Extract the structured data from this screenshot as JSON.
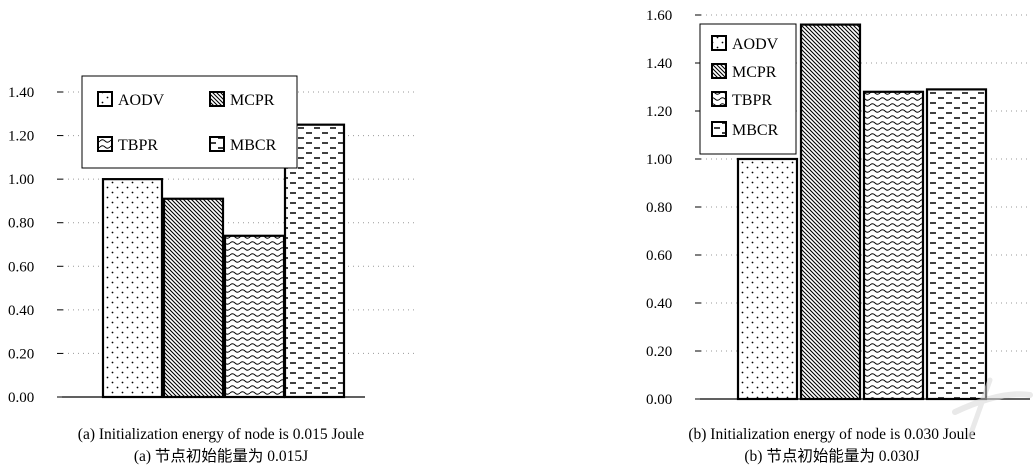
{
  "chart_data": [
    {
      "type": "bar",
      "categories": [
        "AODV",
        "MCPR",
        "TBPR",
        "MBCR"
      ],
      "values": [
        1.0,
        0.91,
        0.74,
        1.25
      ],
      "ylim": [
        0,
        1.4
      ],
      "yticks": [
        "0.00",
        "0.20",
        "0.40",
        "0.60",
        "0.80",
        "1.00",
        "1.20",
        "1.40"
      ],
      "grid": "dotted horizontal",
      "legend": "top, 2x2",
      "caption_en": "(a) Initialization energy of node is 0.015 Joule",
      "caption_cn": "(a)  节点初始能量为 0.015J"
    },
    {
      "type": "bar",
      "categories": [
        "AODV",
        "MCPR",
        "TBPR",
        "MBCR"
      ],
      "values": [
        1.0,
        1.56,
        1.28,
        1.29
      ],
      "ylim": [
        0,
        1.6
      ],
      "yticks": [
        "0.00",
        "0.20",
        "0.40",
        "0.60",
        "0.80",
        "1.00",
        "1.20",
        "1.40",
        "1.60"
      ],
      "grid": "dotted horizontal",
      "legend": "top-left, vertical",
      "caption_en": "(b) Initialization energy of node is 0.030 Joule",
      "caption_cn": "(b)  节点初始能量为 0.030J"
    }
  ],
  "colors": {
    "ink": "#000000",
    "grid": "#9a9a9a",
    "background": "#ffffff",
    "watermark": "#d8d8d8"
  }
}
